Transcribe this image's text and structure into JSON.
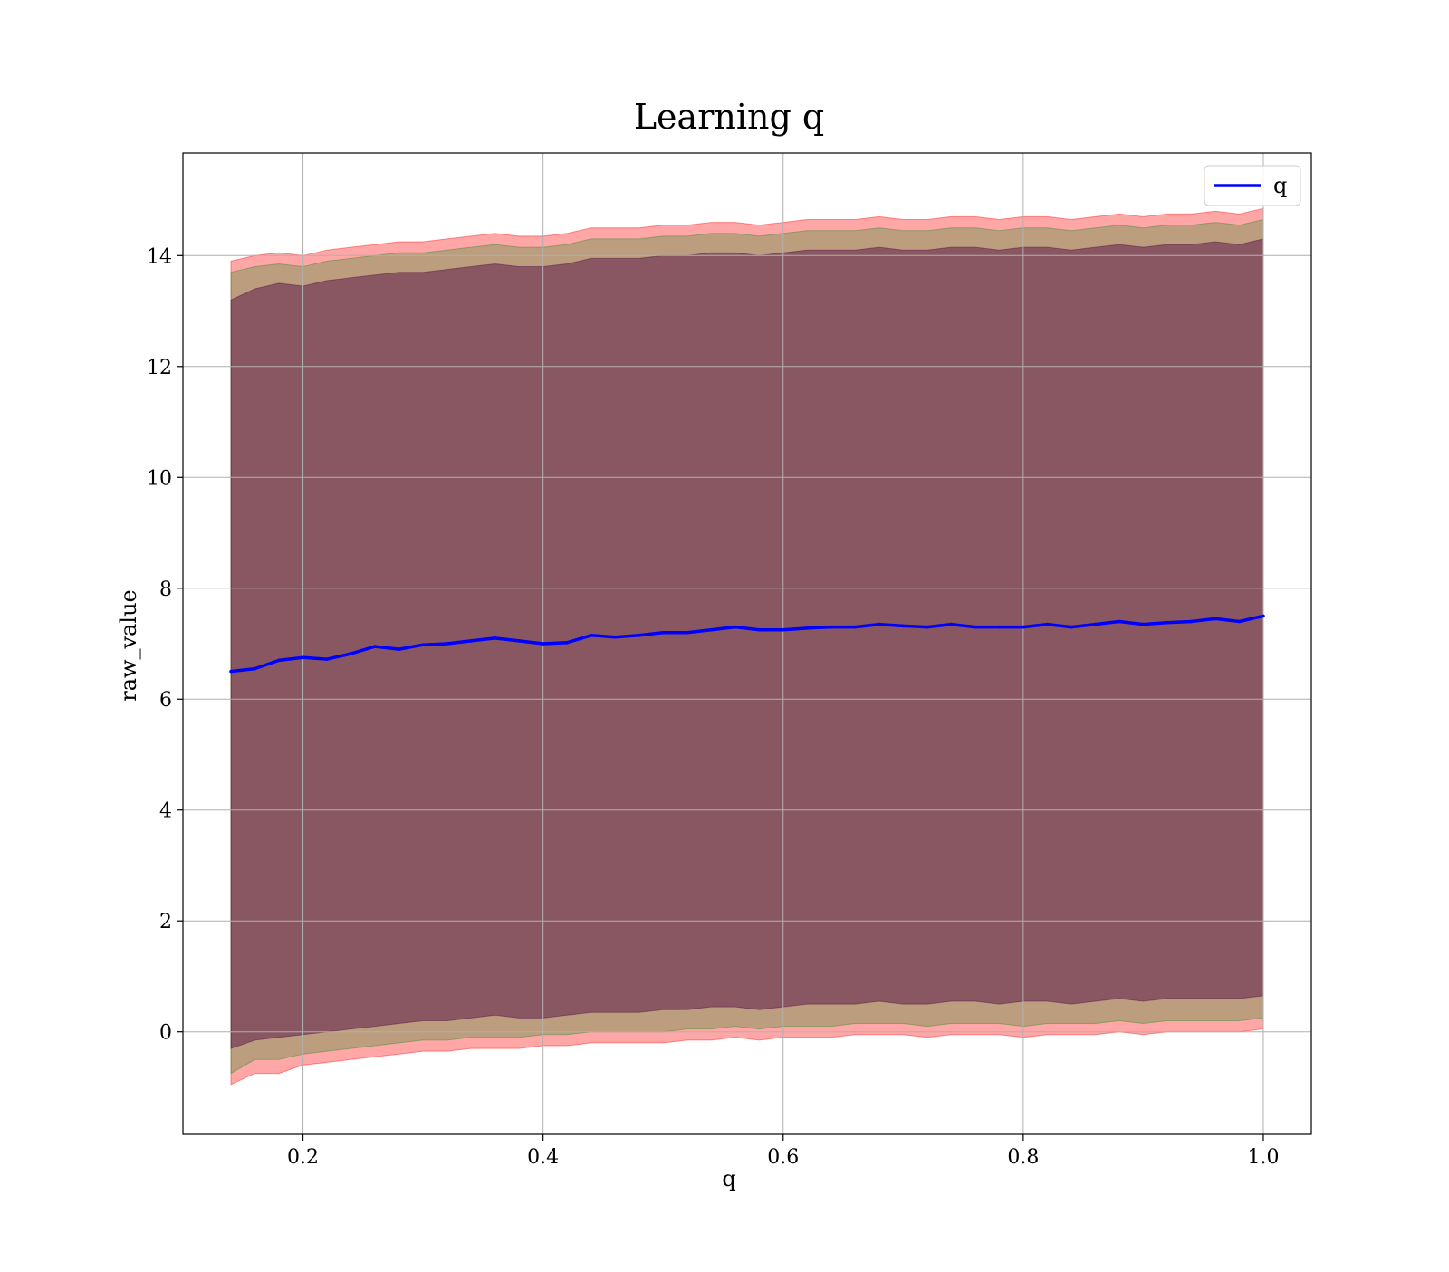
{
  "chart_data": {
    "type": "line",
    "title": "Learning q",
    "xlabel": "q",
    "ylabel": "raw_value",
    "xlim": [
      0.1,
      1.04
    ],
    "ylim": [
      -1.85,
      15.85
    ],
    "x_ticks": [
      0.2,
      0.4,
      0.6,
      0.8,
      1.0
    ],
    "x_tick_labels": [
      "0.2",
      "0.4",
      "0.6",
      "0.8",
      "1.0"
    ],
    "y_ticks": [
      0,
      2,
      4,
      6,
      8,
      10,
      12,
      14
    ],
    "y_tick_labels": [
      "0",
      "2",
      "4",
      "6",
      "8",
      "10",
      "12",
      "14"
    ],
    "grid": true,
    "legend_position": "top-right",
    "series": [
      {
        "name": "q",
        "color": "#0000ff",
        "x": [
          0.14,
          0.16,
          0.18,
          0.2,
          0.22,
          0.24,
          0.26,
          0.28,
          0.3,
          0.32,
          0.34,
          0.36,
          0.38,
          0.4,
          0.42,
          0.44,
          0.46,
          0.48,
          0.5,
          0.52,
          0.54,
          0.56,
          0.58,
          0.6,
          0.62,
          0.64,
          0.66,
          0.68,
          0.7,
          0.72,
          0.74,
          0.76,
          0.78,
          0.8,
          0.82,
          0.84,
          0.86,
          0.88,
          0.9,
          0.92,
          0.94,
          0.96,
          0.98,
          1.0
        ],
        "y": [
          6.5,
          6.55,
          6.7,
          6.75,
          6.72,
          6.82,
          6.95,
          6.9,
          6.98,
          7.0,
          7.05,
          7.1,
          7.05,
          7.0,
          7.02,
          7.15,
          7.12,
          7.15,
          7.2,
          7.2,
          7.25,
          7.3,
          7.25,
          7.25,
          7.28,
          7.3,
          7.3,
          7.35,
          7.32,
          7.3,
          7.35,
          7.3,
          7.3,
          7.3,
          7.35,
          7.3,
          7.35,
          7.4,
          7.35,
          7.38,
          7.4,
          7.45,
          7.4,
          7.5
        ]
      }
    ],
    "bands": [
      {
        "color": "#ff0000",
        "opacity": 0.35,
        "x": [
          0.14,
          0.16,
          0.18,
          0.2,
          0.22,
          0.24,
          0.26,
          0.28,
          0.3,
          0.32,
          0.34,
          0.36,
          0.38,
          0.4,
          0.42,
          0.44,
          0.46,
          0.48,
          0.5,
          0.52,
          0.54,
          0.56,
          0.58,
          0.6,
          0.62,
          0.64,
          0.66,
          0.68,
          0.7,
          0.72,
          0.74,
          0.76,
          0.78,
          0.8,
          0.82,
          0.84,
          0.86,
          0.88,
          0.9,
          0.92,
          0.94,
          0.96,
          0.98,
          1.0
        ],
        "lower": [
          -0.95,
          -0.75,
          -0.75,
          -0.6,
          -0.55,
          -0.5,
          -0.45,
          -0.4,
          -0.35,
          -0.35,
          -0.3,
          -0.3,
          -0.3,
          -0.25,
          -0.25,
          -0.2,
          -0.2,
          -0.2,
          -0.2,
          -0.15,
          -0.15,
          -0.1,
          -0.15,
          -0.1,
          -0.1,
          -0.1,
          -0.05,
          -0.05,
          -0.05,
          -0.1,
          -0.05,
          -0.05,
          -0.05,
          -0.1,
          -0.05,
          -0.05,
          -0.05,
          0.0,
          -0.05,
          0.0,
          0.0,
          0.0,
          0.0,
          0.05
        ],
        "upper": [
          13.9,
          14.0,
          14.05,
          14.0,
          14.1,
          14.15,
          14.2,
          14.25,
          14.25,
          14.3,
          14.35,
          14.4,
          14.35,
          14.35,
          14.4,
          14.5,
          14.5,
          14.5,
          14.55,
          14.55,
          14.6,
          14.6,
          14.55,
          14.6,
          14.65,
          14.65,
          14.65,
          14.7,
          14.65,
          14.65,
          14.7,
          14.7,
          14.65,
          14.7,
          14.7,
          14.65,
          14.7,
          14.75,
          14.7,
          14.75,
          14.75,
          14.8,
          14.75,
          14.85
        ]
      },
      {
        "color": "#228b22",
        "opacity": 0.3,
        "x": [
          0.14,
          0.16,
          0.18,
          0.2,
          0.22,
          0.24,
          0.26,
          0.28,
          0.3,
          0.32,
          0.34,
          0.36,
          0.38,
          0.4,
          0.42,
          0.44,
          0.46,
          0.48,
          0.5,
          0.52,
          0.54,
          0.56,
          0.58,
          0.6,
          0.62,
          0.64,
          0.66,
          0.68,
          0.7,
          0.72,
          0.74,
          0.76,
          0.78,
          0.8,
          0.82,
          0.84,
          0.86,
          0.88,
          0.9,
          0.92,
          0.94,
          0.96,
          0.98,
          1.0
        ],
        "lower": [
          -0.75,
          -0.5,
          -0.5,
          -0.4,
          -0.35,
          -0.3,
          -0.25,
          -0.2,
          -0.15,
          -0.15,
          -0.1,
          -0.1,
          -0.1,
          -0.05,
          -0.05,
          0.0,
          0.0,
          0.0,
          0.0,
          0.05,
          0.05,
          0.1,
          0.05,
          0.1,
          0.1,
          0.1,
          0.15,
          0.15,
          0.15,
          0.1,
          0.15,
          0.15,
          0.15,
          0.1,
          0.15,
          0.15,
          0.15,
          0.2,
          0.15,
          0.2,
          0.2,
          0.2,
          0.2,
          0.25
        ],
        "upper": [
          13.7,
          13.8,
          13.85,
          13.8,
          13.9,
          13.95,
          14.0,
          14.05,
          14.05,
          14.1,
          14.15,
          14.2,
          14.15,
          14.15,
          14.2,
          14.3,
          14.3,
          14.3,
          14.35,
          14.35,
          14.4,
          14.4,
          14.35,
          14.4,
          14.45,
          14.45,
          14.45,
          14.5,
          14.45,
          14.45,
          14.5,
          14.5,
          14.45,
          14.5,
          14.5,
          14.45,
          14.5,
          14.55,
          14.5,
          14.55,
          14.55,
          14.6,
          14.55,
          14.65
        ]
      },
      {
        "color": "#4b0040",
        "opacity": 0.45,
        "x": [
          0.14,
          0.16,
          0.18,
          0.2,
          0.22,
          0.24,
          0.26,
          0.28,
          0.3,
          0.32,
          0.34,
          0.36,
          0.38,
          0.4,
          0.42,
          0.44,
          0.46,
          0.48,
          0.5,
          0.52,
          0.54,
          0.56,
          0.58,
          0.6,
          0.62,
          0.64,
          0.66,
          0.68,
          0.7,
          0.72,
          0.74,
          0.76,
          0.78,
          0.8,
          0.82,
          0.84,
          0.86,
          0.88,
          0.9,
          0.92,
          0.94,
          0.96,
          0.98,
          1.0
        ],
        "lower": [
          -0.3,
          -0.15,
          -0.1,
          -0.05,
          0.0,
          0.05,
          0.1,
          0.15,
          0.2,
          0.2,
          0.25,
          0.3,
          0.25,
          0.25,
          0.3,
          0.35,
          0.35,
          0.35,
          0.4,
          0.4,
          0.45,
          0.45,
          0.4,
          0.45,
          0.5,
          0.5,
          0.5,
          0.55,
          0.5,
          0.5,
          0.55,
          0.55,
          0.5,
          0.55,
          0.55,
          0.5,
          0.55,
          0.6,
          0.55,
          0.6,
          0.6,
          0.6,
          0.6,
          0.65
        ],
        "upper": [
          13.2,
          13.4,
          13.5,
          13.45,
          13.55,
          13.6,
          13.65,
          13.7,
          13.7,
          13.75,
          13.8,
          13.85,
          13.8,
          13.8,
          13.85,
          13.95,
          13.95,
          13.95,
          14.0,
          14.0,
          14.05,
          14.05,
          14.0,
          14.05,
          14.1,
          14.1,
          14.1,
          14.15,
          14.1,
          14.1,
          14.15,
          14.15,
          14.1,
          14.15,
          14.15,
          14.1,
          14.15,
          14.2,
          14.15,
          14.2,
          14.2,
          14.25,
          14.2,
          14.3
        ]
      }
    ]
  }
}
